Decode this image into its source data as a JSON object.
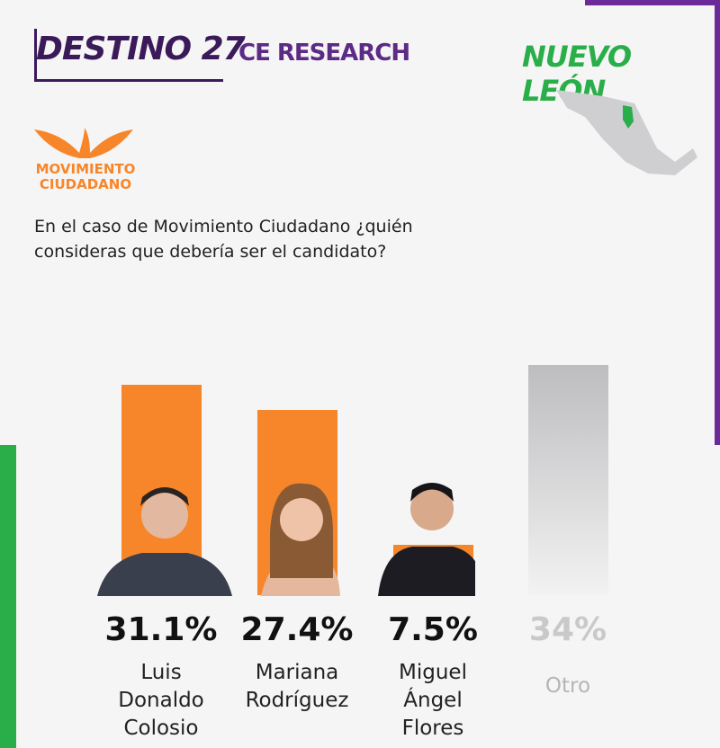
{
  "header": {
    "brand": "DESTINO 27",
    "partner": "CE RESEARCH",
    "region": "NUEVO LEÓN",
    "party": "MOVIMIENTO CIUDADANO"
  },
  "chart_data": {
    "type": "bar",
    "title": "En el caso de Movimiento Ciudadano ¿quién consideras que debería ser el candidato?",
    "categories": [
      "Luis Donaldo Colosio",
      "Mariana Rodríguez",
      "Miguel Ángel Flores",
      "Otro"
    ],
    "values": [
      31.1,
      27.4,
      7.5,
      34
    ],
    "value_labels": [
      "31.1%",
      "27.4%",
      "7.5%",
      "34%"
    ],
    "colors": [
      "#f7862a",
      "#f7862a",
      "#f7862a",
      "#c9c9cb"
    ]
  }
}
